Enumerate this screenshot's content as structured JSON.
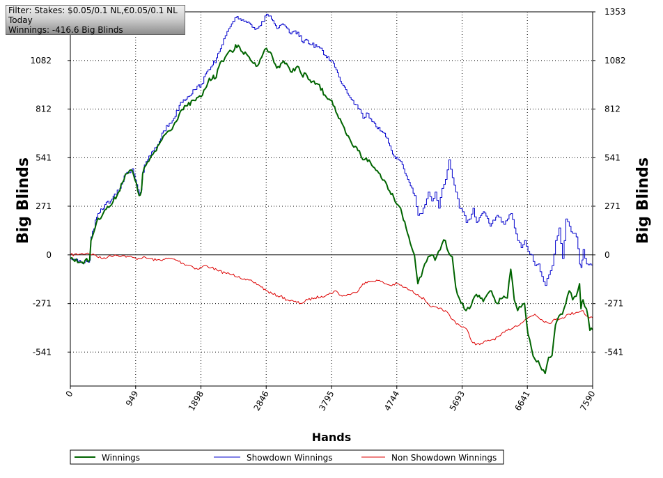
{
  "filter_box": {
    "line1": "Filter: Stakes: $0.05/0.1 NL,€0.05/0.1 NL",
    "line2": "Today",
    "line3": "Winnings: -416.6 Big Blinds"
  },
  "colors": {
    "winnings": "#006400",
    "showdown": "#0000cc",
    "non_showdown": "#dd0000",
    "grid": "#000000",
    "zero_line": "#000000"
  },
  "chart_data": {
    "type": "line",
    "xlabel": "Hands",
    "ylabel_left": "Big Blinds",
    "ylabel_right": "Big Blinds",
    "xlim": [
      0,
      7590
    ],
    "ylim": [
      -730,
      1353
    ],
    "x_ticks": [
      0,
      949,
      1898,
      2846,
      3795,
      4744,
      5693,
      6641,
      7590
    ],
    "y_ticks": [
      1353,
      1082,
      812,
      541,
      271,
      0,
      -271,
      -541
    ],
    "y_tick_labels_left": [
      "1082",
      "812",
      "541",
      "271",
      "0",
      "-271",
      "-541"
    ],
    "y_tick_labels_right": [
      "1353",
      "1082",
      "812",
      "541",
      "271",
      "0",
      "-271",
      "-541"
    ],
    "grid": true,
    "legend_position": "bottom",
    "series": [
      {
        "name": "Winnings",
        "x": [
          0,
          150,
          280,
          300,
          380,
          500,
          600,
          700,
          800,
          900,
          1000,
          1030,
          1050,
          1100,
          1200,
          1250,
          1350,
          1500,
          1600,
          1700,
          1800,
          1900,
          2000,
          2080,
          2100,
          2200,
          2250,
          2300,
          2380,
          2400,
          2500,
          2600,
          2700,
          2800,
          2850,
          2900,
          3000,
          3100,
          3200,
          3300,
          3380,
          3420,
          3500,
          3600,
          3700,
          3800,
          3900,
          4000,
          4100,
          4200,
          4250,
          4300,
          4400,
          4500,
          4600,
          4700,
          4800,
          4900,
          5000,
          5050,
          5100,
          5150,
          5200,
          5250,
          5300,
          5350,
          5400,
          5450,
          5500,
          5550,
          5600,
          5650,
          5700,
          5750,
          5800,
          5850,
          5900,
          6000,
          6100,
          6200,
          6300,
          6350,
          6400,
          6450,
          6500,
          6550,
          6600,
          6650,
          6700,
          6750,
          6800,
          6850,
          6900,
          6950,
          7000,
          7050,
          7100,
          7150,
          7200,
          7250,
          7300,
          7350,
          7400,
          7420,
          7450,
          7500,
          7550,
          7590
        ],
        "values": [
          -20,
          -40,
          -30,
          80,
          180,
          250,
          280,
          350,
          450,
          470,
          330,
          350,
          450,
          500,
          560,
          580,
          660,
          720,
          800,
          830,
          860,
          880,
          960,
          1000,
          980,
          1080,
          1100,
          1130,
          1140,
          1170,
          1130,
          1100,
          1050,
          1120,
          1150,
          1130,
          1040,
          1080,
          1020,
          1050,
          990,
          1010,
          960,
          950,
          890,
          860,
          760,
          680,
          610,
          580,
          530,
          540,
          490,
          450,
          390,
          320,
          260,
          120,
          0,
          -160,
          -120,
          -50,
          -10,
          0,
          -30,
          20,
          60,
          80,
          10,
          -10,
          -180,
          -240,
          -270,
          -310,
          -300,
          -250,
          -220,
          -260,
          -200,
          -270,
          -230,
          -240,
          -80,
          -250,
          -310,
          -290,
          -270,
          -440,
          -520,
          -580,
          -590,
          -640,
          -660,
          -570,
          -560,
          -390,
          -340,
          -330,
          -270,
          -200,
          -250,
          -230,
          -160,
          -300,
          -250,
          -300,
          -420,
          -416.6
        ]
      },
      {
        "name": "Showdown Winnings",
        "x": [
          0,
          150,
          280,
          300,
          380,
          500,
          600,
          700,
          800,
          900,
          1000,
          1030,
          1050,
          1100,
          1200,
          1250,
          1350,
          1500,
          1600,
          1700,
          1800,
          1900,
          2000,
          2080,
          2100,
          2200,
          2250,
          2300,
          2380,
          2400,
          2500,
          2600,
          2700,
          2800,
          2850,
          2900,
          3000,
          3100,
          3200,
          3300,
          3380,
          3420,
          3500,
          3600,
          3700,
          3800,
          3900,
          4000,
          4100,
          4200,
          4250,
          4300,
          4400,
          4500,
          4600,
          4700,
          4800,
          4900,
          5000,
          5050,
          5100,
          5150,
          5200,
          5250,
          5300,
          5350,
          5400,
          5450,
          5500,
          5550,
          5600,
          5650,
          5700,
          5750,
          5800,
          5850,
          5900,
          6000,
          6100,
          6200,
          6300,
          6350,
          6400,
          6450,
          6500,
          6550,
          6600,
          6650,
          6700,
          6750,
          6800,
          6850,
          6900,
          6950,
          7000,
          7050,
          7100,
          7150,
          7200,
          7250,
          7300,
          7350,
          7400,
          7420,
          7450,
          7500,
          7550,
          7590
        ],
        "values": [
          -20,
          -40,
          -30,
          100,
          210,
          280,
          310,
          360,
          450,
          480,
          340,
          360,
          460,
          520,
          580,
          600,
          690,
          760,
          850,
          880,
          920,
          950,
          1030,
          1080,
          1070,
          1170,
          1220,
          1260,
          1300,
          1320,
          1310,
          1290,
          1260,
          1300,
          1340,
          1330,
          1260,
          1280,
          1230,
          1240,
          1180,
          1200,
          1170,
          1160,
          1110,
          1080,
          990,
          920,
          860,
          810,
          760,
          790,
          740,
          690,
          650,
          550,
          520,
          420,
          330,
          220,
          230,
          280,
          350,
          300,
          350,
          260,
          370,
          420,
          530,
          430,
          350,
          260,
          240,
          180,
          200,
          260,
          180,
          240,
          160,
          220,
          170,
          200,
          230,
          150,
          80,
          40,
          80,
          20,
          0,
          -60,
          -50,
          -120,
          -170,
          -110,
          -60,
          80,
          150,
          -20,
          200,
          160,
          120,
          100,
          -50,
          -70,
          30,
          -50,
          -50,
          -60
        ]
      },
      {
        "name": "Non Showdown Winnings",
        "x": [
          0,
          150,
          250,
          350,
          450,
          550,
          650,
          750,
          850,
          950,
          1050,
          1150,
          1250,
          1350,
          1450,
          1550,
          1650,
          1750,
          1850,
          1950,
          2050,
          2150,
          2250,
          2350,
          2450,
          2550,
          2650,
          2750,
          2850,
          2950,
          3050,
          3150,
          3250,
          3350,
          3450,
          3550,
          3650,
          3750,
          3850,
          3950,
          4050,
          4150,
          4250,
          4350,
          4450,
          4550,
          4650,
          4750,
          4850,
          4950,
          5050,
          5150,
          5250,
          5350,
          5450,
          5550,
          5650,
          5750,
          5850,
          5950,
          6050,
          6150,
          6250,
          6350,
          6450,
          6550,
          6650,
          6750,
          6850,
          6950,
          7050,
          7150,
          7250,
          7350,
          7450,
          7500,
          7590
        ],
        "values": [
          0,
          5,
          10,
          0,
          -20,
          -10,
          0,
          -5,
          -10,
          -20,
          -15,
          -20,
          -30,
          -25,
          -20,
          -30,
          -50,
          -60,
          -80,
          -60,
          -70,
          -90,
          -100,
          -110,
          -120,
          -140,
          -150,
          -170,
          -200,
          -220,
          -230,
          -250,
          -260,
          -270,
          -250,
          -240,
          -230,
          -220,
          -200,
          -230,
          -220,
          -210,
          -160,
          -150,
          -140,
          -155,
          -170,
          -160,
          -180,
          -200,
          -220,
          -250,
          -290,
          -300,
          -310,
          -360,
          -390,
          -410,
          -490,
          -500,
          -480,
          -470,
          -450,
          -420,
          -400,
          -380,
          -350,
          -330,
          -360,
          -380,
          -360,
          -350,
          -330,
          -320,
          -310,
          -340,
          -350
        ]
      }
    ]
  }
}
